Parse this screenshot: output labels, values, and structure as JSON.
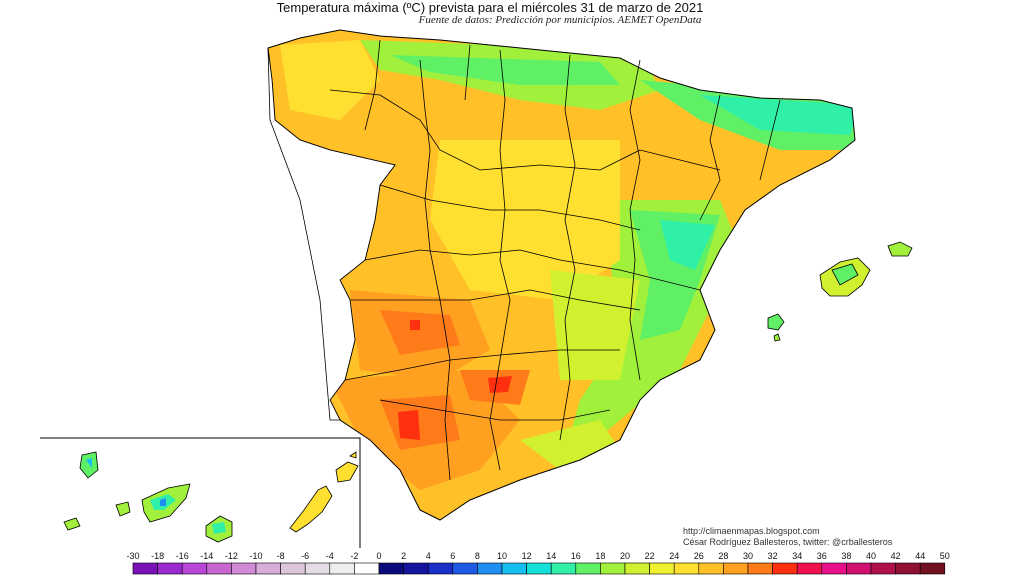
{
  "title": "Temperatura máxima (ºC) prevista para el miércoles 31 de marzo de 2021",
  "subtitle": "Fuente de datos: Predicción por municipios. AEMET OpenData",
  "credits": {
    "url": "http://climaenmapas.blogspot.com",
    "author": "César Rodríguez Ballesteros, twitter: @crballesteros"
  },
  "legend": {
    "labels": [
      "-30",
      "-18",
      "-16",
      "-14",
      "-12",
      "-10",
      "-8",
      "-6",
      "-4",
      "-2",
      "0",
      "2",
      "4",
      "6",
      "8",
      "10",
      "12",
      "14",
      "16",
      "18",
      "20",
      "22",
      "24",
      "26",
      "28",
      "30",
      "32",
      "34",
      "36",
      "38",
      "40",
      "42",
      "44",
      "50"
    ],
    "colors": [
      "#7a12b8",
      "#9a2ad0",
      "#b846d6",
      "#c866d0",
      "#d08ad6",
      "#d8aed8",
      "#dcc6dc",
      "#e4dce4",
      "#eeeeee",
      "#ffffff",
      "#0a0a7a",
      "#14149e",
      "#1a2ec8",
      "#1e5ae6",
      "#1e8ef0",
      "#16bef0",
      "#14e0d8",
      "#30f0a8",
      "#60f066",
      "#a0f03c",
      "#d0f030",
      "#f0f030",
      "#ffe030",
      "#ffc028",
      "#ffa020",
      "#ff7a18",
      "#ff3010",
      "#f01050",
      "#e8108a",
      "#d01070",
      "#b0104a",
      "#901034",
      "#701020"
    ]
  }
}
